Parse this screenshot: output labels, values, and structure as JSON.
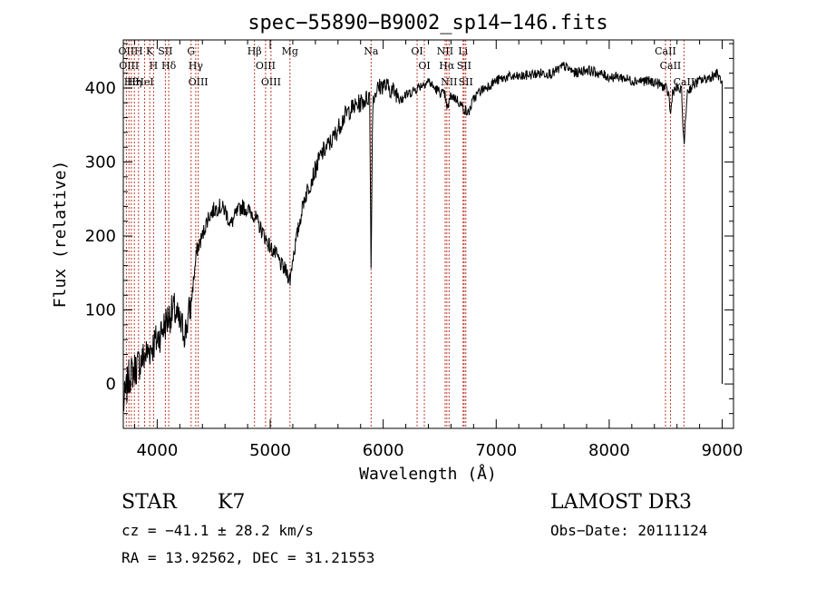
{
  "chart_data": {
    "type": "line",
    "title": "spec−55890−B9002_sp14−146.fits",
    "xlabel": "Wavelength (Å)",
    "ylabel": "Flux (relative)",
    "xlim": [
      3700,
      9100
    ],
    "ylim": [
      -60,
      465
    ],
    "xticks": [
      4000,
      5000,
      6000,
      7000,
      8000,
      9000
    ],
    "xtick_labels": [
      "4000",
      "5000",
      "6000",
      "7000",
      "8000",
      "9000"
    ],
    "yticks": [
      0,
      100,
      200,
      300,
      400
    ],
    "ytick_labels": [
      "0",
      "100",
      "200",
      "300",
      "400"
    ],
    "series": [
      {
        "x": [
          3700,
          3750,
          3800,
          3850,
          3900,
          3950,
          4000,
          4050,
          4100,
          4150,
          4200,
          4250,
          4300,
          4350,
          4400,
          4450,
          4500,
          4550,
          4600,
          4650,
          4700,
          4750,
          4800,
          4850,
          4900,
          4950,
          5000,
          5050,
          5100,
          5150,
          5175,
          5200,
          5250,
          5300,
          5350,
          5400,
          5450,
          5500,
          5550,
          5600,
          5650,
          5700,
          5750,
          5800,
          5850,
          5880,
          5893,
          5906,
          5930,
          5960,
          6000,
          6050,
          6100,
          6150,
          6200,
          6250,
          6300,
          6350,
          6400,
          6450,
          6500,
          6550,
          6563,
          6600,
          6650,
          6700,
          6750,
          6800,
          6850,
          6900,
          6950,
          7000,
          7100,
          7200,
          7300,
          7400,
          7500,
          7600,
          7700,
          7800,
          7900,
          8000,
          8100,
          8200,
          8300,
          8400,
          8450,
          8500,
          8530,
          8542,
          8560,
          8600,
          8640,
          8662,
          8690,
          8750,
          8800,
          8850,
          8900,
          8950,
          8990,
          9000
        ],
        "values": [
          -30,
          10,
          20,
          30,
          40,
          50,
          60,
          75,
          90,
          100,
          80,
          70,
          110,
          180,
          200,
          225,
          235,
          240,
          235,
          215,
          230,
          240,
          235,
          230,
          215,
          200,
          185,
          175,
          160,
          150,
          140,
          170,
          210,
          250,
          270,
          290,
          310,
          320,
          330,
          345,
          360,
          370,
          375,
          380,
          385,
          390,
          150,
          380,
          395,
          400,
          405,
          400,
          395,
          390,
          390,
          395,
          400,
          405,
          410,
          400,
          395,
          390,
          370,
          390,
          385,
          375,
          365,
          385,
          395,
          400,
          405,
          410,
          415,
          415,
          418,
          420,
          420,
          430,
          420,
          425,
          420,
          415,
          415,
          410,
          410,
          408,
          405,
          400,
          390,
          360,
          395,
          400,
          395,
          320,
          395,
          405,
          410,
          412,
          415,
          420,
          410,
          0
        ]
      }
    ],
    "lines": [
      {
        "x": 3727,
        "label": "OII"
      },
      {
        "x": 3750,
        "label": "OIII"
      },
      {
        "x": 3771,
        "label": "Hθ"
      },
      {
        "x": 3798,
        "label": "Hη"
      },
      {
        "x": 3835,
        "label": "H"
      },
      {
        "x": 3889,
        "label": "HeI"
      },
      {
        "x": 3934,
        "label": "K"
      },
      {
        "x": 3968,
        "label": "H"
      },
      {
        "x": 4072,
        "label": "SII"
      },
      {
        "x": 4102,
        "label": "Hδ"
      },
      {
        "x": 4300,
        "label": "G"
      },
      {
        "x": 4341,
        "label": "Hγ"
      },
      {
        "x": 4363,
        "label": "OIII"
      },
      {
        "x": 4861,
        "label": "Hβ"
      },
      {
        "x": 4959,
        "label": "OIII"
      },
      {
        "x": 5007,
        "label": "OIII"
      },
      {
        "x": 5175,
        "label": "Mg"
      },
      {
        "x": 5893,
        "label": "Na"
      },
      {
        "x": 6300,
        "label": "OI"
      },
      {
        "x": 6364,
        "label": "OI"
      },
      {
        "x": 6548,
        "label": "NII"
      },
      {
        "x": 6563,
        "label": "Hα"
      },
      {
        "x": 6583,
        "label": "NII"
      },
      {
        "x": 6707,
        "label": "Li"
      },
      {
        "x": 6716,
        "label": "SII"
      },
      {
        "x": 6731,
        "label": "SII"
      },
      {
        "x": 8498,
        "label": "CaII"
      },
      {
        "x": 8542,
        "label": "CaII"
      },
      {
        "x": 8662,
        "label": "CaII"
      }
    ]
  },
  "info": {
    "class": "STAR",
    "subclass": "K7",
    "survey": "LAMOST DR3",
    "cz": "cz = −41.1 ± 28.2 km/s",
    "obsdate": "Obs−Date: 20111124",
    "radec": "RA =  13.92562, DEC =  31.21553"
  }
}
